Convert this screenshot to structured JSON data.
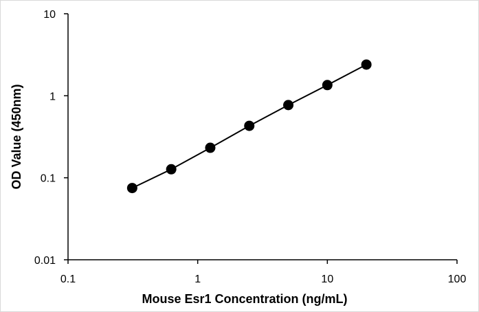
{
  "chart_data": {
    "type": "scatter",
    "title": "",
    "xlabel": "Mouse Esr1 Concentration (ng/mL)",
    "ylabel": "OD Value (450nm)",
    "x_scale": "log",
    "y_scale": "log",
    "xlim": [
      0.1,
      100
    ],
    "ylim": [
      0.01,
      10
    ],
    "x_ticks": [
      0.1,
      1,
      10,
      100
    ],
    "y_ticks": [
      0.01,
      0.1,
      1,
      10
    ],
    "x_tick_labels": [
      "0.1",
      "1",
      "10",
      "100"
    ],
    "y_tick_labels": [
      "0.01",
      "0.1",
      "1",
      "10"
    ],
    "grid": false,
    "legend": "none",
    "series": [
      {
        "x": [
          0.3125,
          0.625,
          1.25,
          2.5,
          5,
          10,
          20
        ],
        "y": [
          0.075,
          0.127,
          0.232,
          0.43,
          0.77,
          1.35,
          2.4
        ],
        "connect": true,
        "color": "#000000"
      }
    ]
  }
}
